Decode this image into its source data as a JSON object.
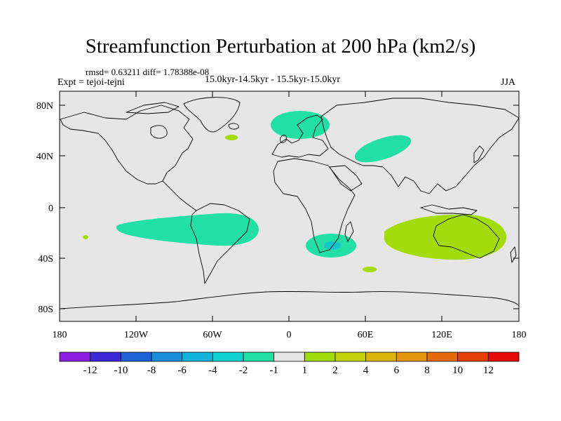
{
  "title": "Streamfunction Perturbation at 200 hPa (km2/s)",
  "stats": "rmsd= 0.63211 diff= 1.78388e-08",
  "experiment": "Expt = tejoi-tejni",
  "period": "15.0kyr-14.5kyr - 15.5kyr-15.0kyr",
  "season": "JJA",
  "axes": {
    "lat_ticks": [
      "80N",
      "40N",
      "0",
      "40S",
      "80S"
    ],
    "lon_ticks": [
      "180",
      "120W",
      "60W",
      "0",
      "60E",
      "120E",
      "180"
    ]
  },
  "colorbar": {
    "colors": [
      "#8a1fe0",
      "#3b2ad6",
      "#1e63d8",
      "#1a8ed8",
      "#12b4dc",
      "#10d2d2",
      "#22e0a4",
      "#e6e6e6",
      "#a2dc0a",
      "#c4d20a",
      "#dcb40a",
      "#e6960a",
      "#e66a0a",
      "#e6400a",
      "#e60a0a"
    ],
    "labels": [
      "-12",
      "-10",
      "-8",
      "-6",
      "-4",
      "-2",
      "-1",
      "1",
      "2",
      "4",
      "6",
      "8",
      "10",
      "12"
    ]
  },
  "colors": {
    "background": "#e6e6e6",
    "neg_1": "#22e0a4",
    "neg_2": "#12c6cc",
    "pos_1": "#a2dc0a"
  }
}
